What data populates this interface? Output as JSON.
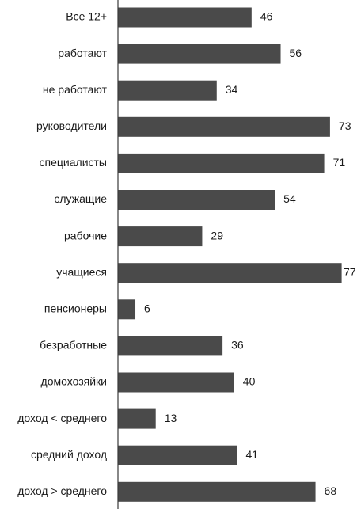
{
  "chart_data": {
    "type": "bar",
    "orientation": "horizontal",
    "categories": [
      "Все 12+",
      "работают",
      "не работают",
      "руководители",
      "специалисты",
      "служащие",
      "рабочие",
      "учащиеся",
      "пенсионеры",
      "безработные",
      "домохозяйки",
      "доход < среднего",
      "средний доход",
      "доход > среднего"
    ],
    "values": [
      46,
      56,
      34,
      73,
      71,
      54,
      29,
      77,
      6,
      36,
      40,
      13,
      41,
      68
    ],
    "value_labels": [
      "46",
      "56",
      "34",
      "73",
      "71",
      "54",
      "29",
      "77",
      "6",
      "36",
      "40",
      "13",
      "41",
      "68"
    ],
    "xlim": [
      0,
      77
    ],
    "grid": false,
    "colors": {
      "bar": "#4a4a4a",
      "axis": "#3a3a3a",
      "text": "#1a1a1a"
    }
  }
}
